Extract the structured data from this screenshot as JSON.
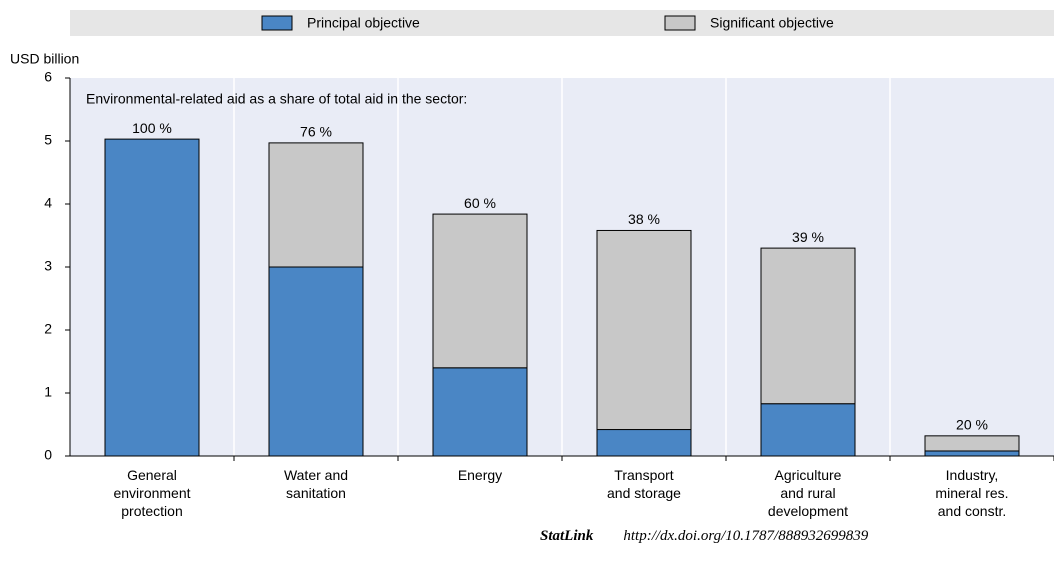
{
  "chart_data": {
    "type": "stacked-bar",
    "y_axis_label": "USD billion",
    "annotation": "Environmental-related aid as a share of total aid in the sector:",
    "categories": [
      "General\nenvironment\nprotection",
      "Water and\nsanitation",
      "Energy",
      "Transport\nand storage",
      "Agriculture\nand rural\ndevelopment",
      "Industry,\nmineral res.\nand constr."
    ],
    "series": [
      {
        "name": "Principal objective",
        "color": "#4a86c5",
        "values": [
          5.03,
          3.0,
          1.4,
          0.42,
          0.83,
          0.08
        ]
      },
      {
        "name": "Significant objective",
        "color": "#c8c8c8",
        "values": [
          0,
          1.97,
          2.44,
          3.16,
          2.47,
          0.24
        ]
      }
    ],
    "share_labels": [
      "100 %",
      "76 %",
      "60 %",
      "38 %",
      "39 %",
      "20 %"
    ],
    "ylim": [
      0,
      6
    ],
    "yticks": [
      0,
      1,
      2,
      3,
      4,
      5,
      6
    ],
    "legend": "top",
    "footer": {
      "source": "StatLink",
      "link": "http://dx.doi.org/10.1787/888932699839"
    }
  }
}
